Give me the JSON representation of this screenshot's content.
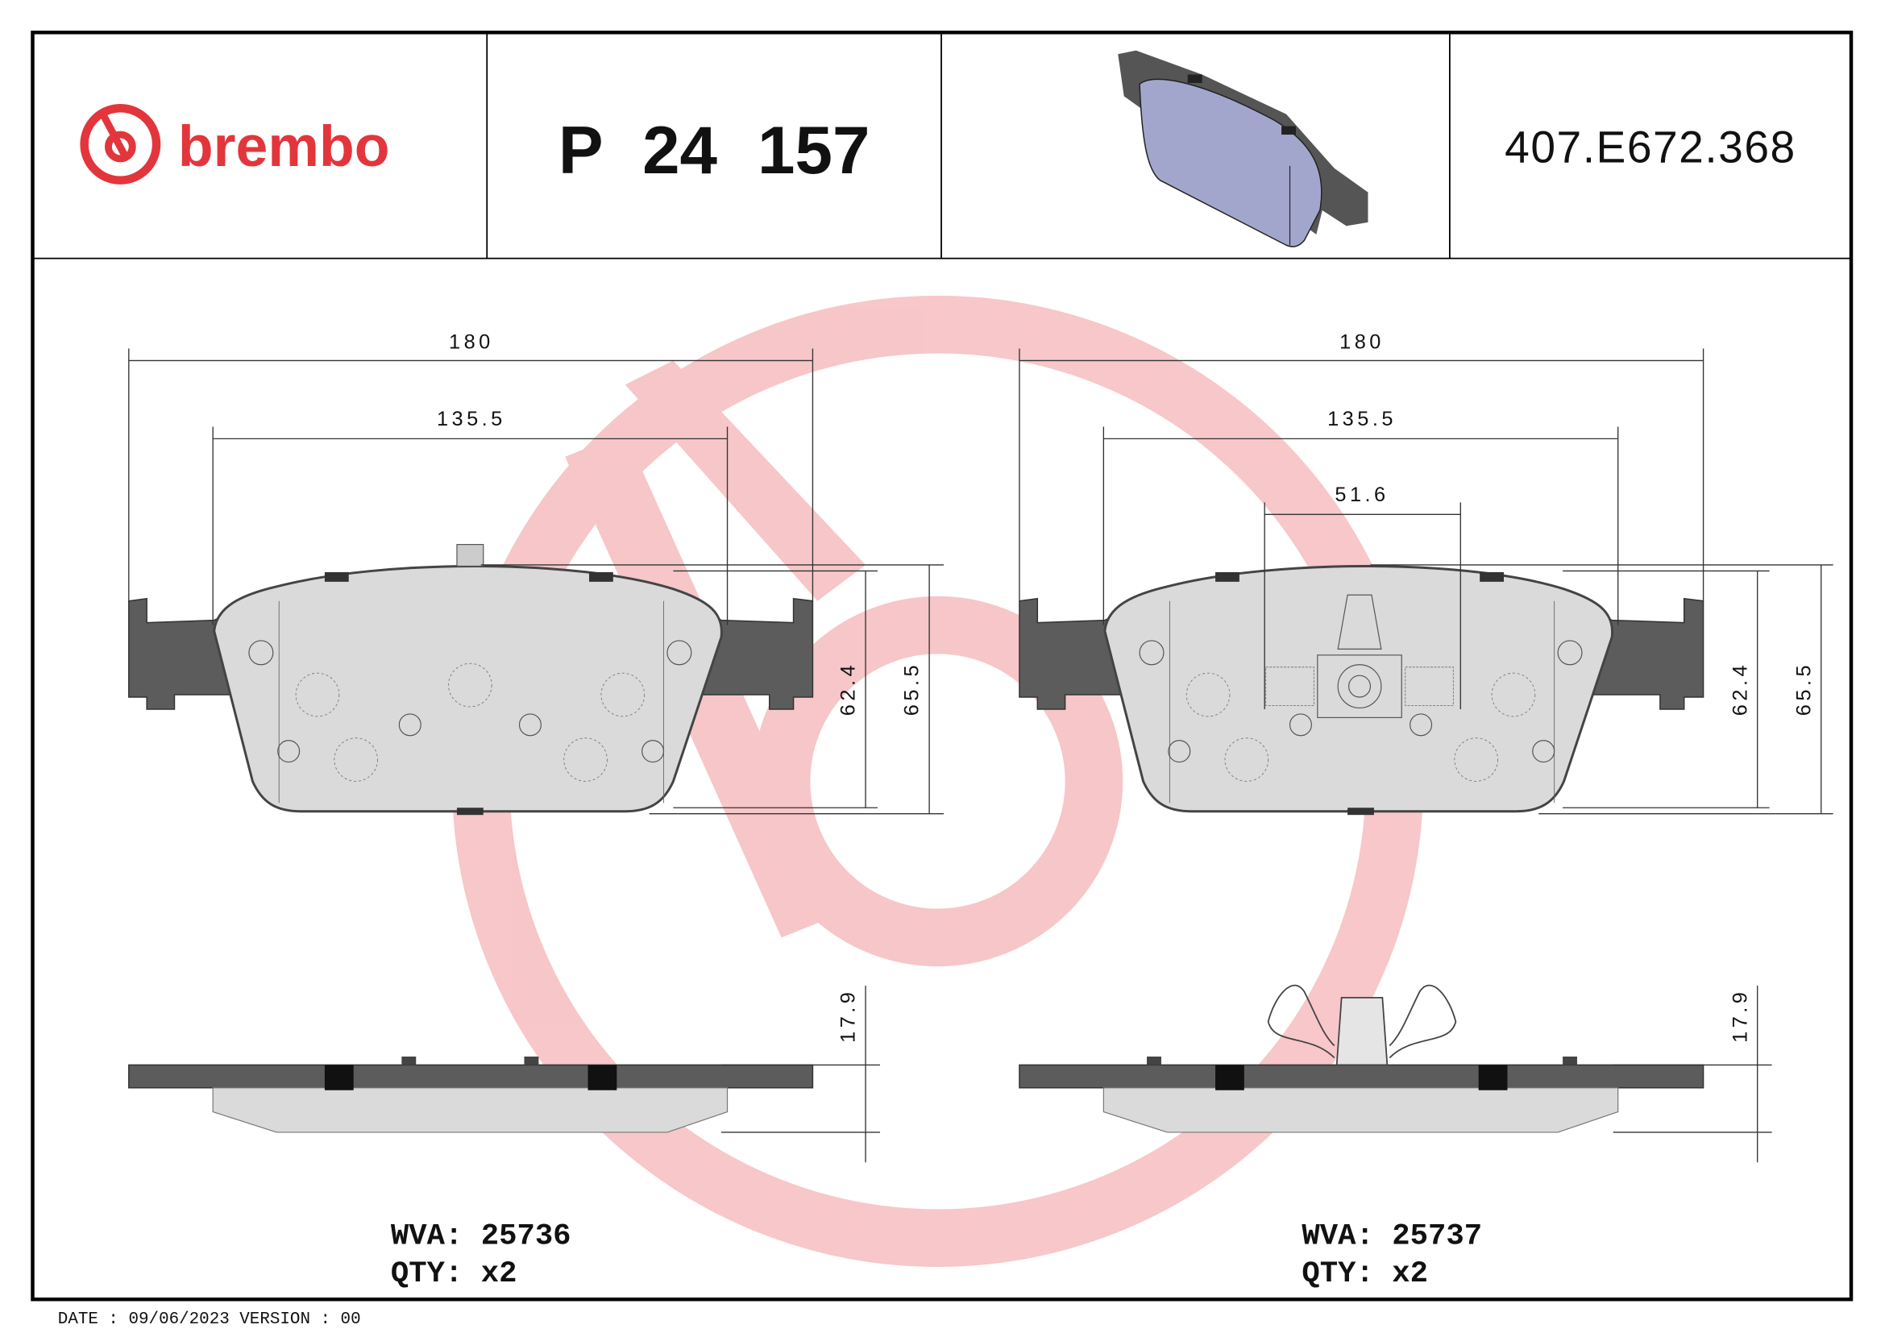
{
  "header": {
    "brand": "brembo",
    "part_number": "P 24 157",
    "reference": "407.E672.368"
  },
  "colors": {
    "brand_red": "#e2363c",
    "backplate": "#5c5c5c",
    "friction": "#dadada",
    "render_face": "#a3a6cc"
  },
  "left_pad": {
    "dim_width_total": "180",
    "dim_width_inner": "135.5",
    "dim_height_inner": "62.4",
    "dim_height_total": "65.5",
    "dim_thickness": "17.9",
    "wva": "WVA: 25736",
    "qty": "QTY: x2"
  },
  "right_pad": {
    "dim_width_total": "180",
    "dim_width_inner": "135.5",
    "dim_sensor": "51.6",
    "dim_height_inner": "62.4",
    "dim_height_total": "65.5",
    "dim_thickness": "17.9",
    "wva": "WVA: 25737",
    "qty": "QTY: x2"
  },
  "footer": {
    "date_version": "DATE : 09/06/2023 VERSION : 00"
  }
}
